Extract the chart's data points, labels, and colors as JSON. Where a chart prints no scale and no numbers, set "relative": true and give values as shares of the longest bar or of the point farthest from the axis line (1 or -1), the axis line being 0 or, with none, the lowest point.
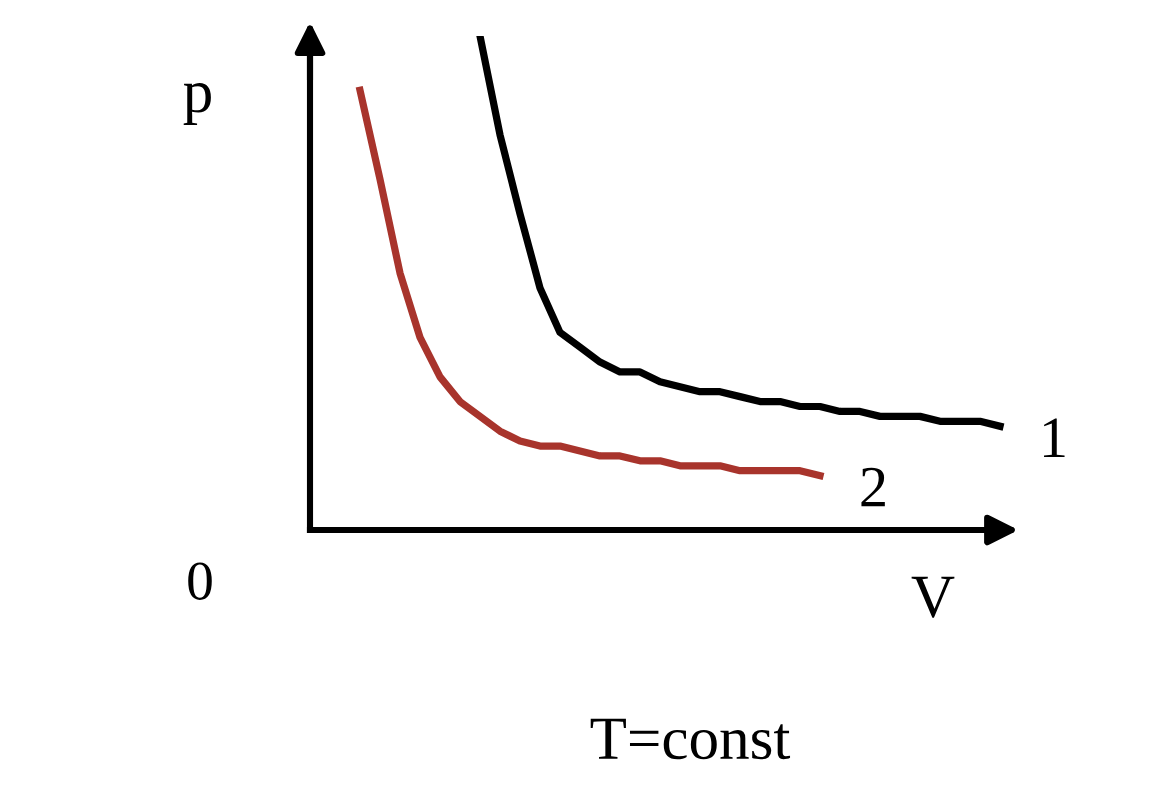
{
  "chart_data": {
    "type": "line",
    "relative": true,
    "xlabel": "V",
    "ylabel": "p",
    "categories": [
      null,
      null,
      null,
      null,
      null,
      null,
      null,
      null,
      null,
      null,
      null,
      null,
      null,
      null,
      null,
      null,
      null,
      null,
      null,
      null,
      null,
      null,
      null,
      null,
      null,
      null,
      null,
      null,
      null,
      null,
      null,
      null,
      null,
      null,
      null
    ],
    "series": [
      {
        "name": "1",
        "color": "#000000",
        "values": [
          null,
          null,
          null,
          null,
          null,
          null,
          null,
          null,
          1.0,
          0.8,
          0.64,
          0.49,
          0.4,
          0.37,
          0.34,
          0.32,
          0.32,
          0.3,
          0.29,
          0.28,
          0.28,
          0.27,
          0.26,
          0.26,
          0.25,
          0.25,
          0.24,
          0.24,
          0.23,
          0.23,
          0.23,
          0.22,
          0.22,
          0.22,
          0.21
        ]
      },
      {
        "name": "2",
        "color": "#a8342c",
        "values": [
          null,
          null,
          0.89,
          0.71,
          0.52,
          0.39,
          0.31,
          0.26,
          0.23,
          0.2,
          0.18,
          0.17,
          0.17,
          0.16,
          0.15,
          0.15,
          0.14,
          0.14,
          0.13,
          0.13,
          0.13,
          0.12,
          0.12,
          0.12,
          0.12,
          0.11,
          null,
          null,
          null,
          null,
          null,
          null,
          null,
          null,
          null
        ]
      }
    ],
    "annotations": [
      "0",
      "T=const"
    ],
    "legend": false,
    "marker": "none",
    "line_style": "solid"
  }
}
